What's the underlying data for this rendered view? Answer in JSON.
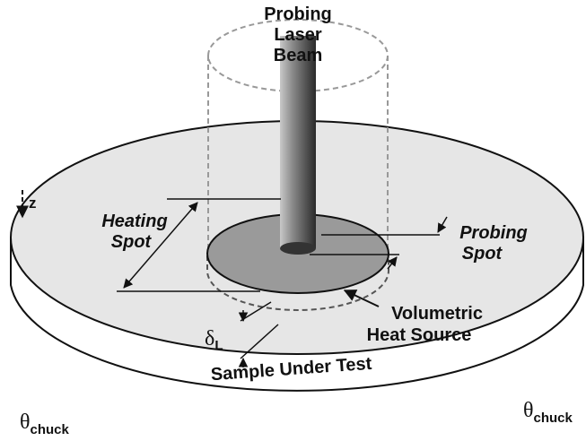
{
  "labels": {
    "beam": [
      "Probing",
      "Laser",
      "Beam"
    ],
    "z": "z",
    "heating_spot": [
      "Heating",
      "Spot"
    ],
    "probing_spot": [
      "Probing",
      "Spot"
    ],
    "heat_source": [
      "Volumetric",
      "Heat Source"
    ],
    "depth": {
      "symbol": "δ",
      "sub": "L"
    },
    "sample": "Sample Under Test",
    "chuck_left": {
      "symbol": "θ",
      "sub": "chuck"
    },
    "chuck_right": {
      "symbol": "θ",
      "sub": "chuck"
    }
  }
}
